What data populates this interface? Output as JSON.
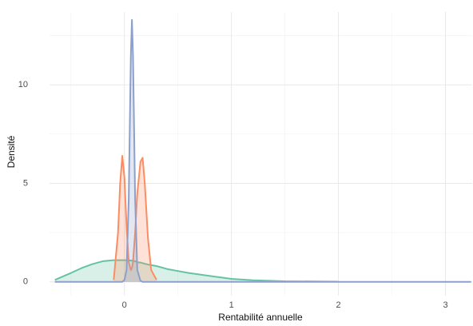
{
  "chart_data": {
    "type": "density",
    "x_label": "Rentabilité annuelle",
    "y_label": "Densité",
    "x": [
      -0.65,
      -0.5,
      -0.4,
      -0.3,
      -0.2,
      -0.1,
      -0.06,
      -0.04,
      -0.02,
      0,
      0.02,
      0.04,
      0.06,
      0.07,
      0.08,
      0.1,
      0.12,
      0.15,
      0.17,
      0.19,
      0.22,
      0.25,
      0.3,
      0.4,
      0.5,
      0.6,
      0.8,
      1.0,
      1.2,
      1.5,
      2.0,
      2.5,
      3.0,
      3.24
    ],
    "series": [
      {
        "color": "#66c2a5",
        "values": [
          0.1,
          0.45,
          0.7,
          0.9,
          1.05,
          1.1,
          1.1,
          1.1,
          1.1,
          1.1,
          1.1,
          1.1,
          1.08,
          1.08,
          1.07,
          1.05,
          1.0,
          0.98,
          0.95,
          0.92,
          0.88,
          0.85,
          0.8,
          0.65,
          0.55,
          0.45,
          0.3,
          0.15,
          0.08,
          0.03,
          0.01,
          null,
          null,
          null
        ]
      },
      {
        "color": "#fc8d62",
        "values": [
          null,
          null,
          null,
          null,
          null,
          0.1,
          2.5,
          5.0,
          6.4,
          5.3,
          2.8,
          1.0,
          0.6,
          0.7,
          1.0,
          2.5,
          4.5,
          6.1,
          6.3,
          5.0,
          2.2,
          0.6,
          0.1,
          null,
          null,
          null,
          null,
          null,
          null,
          null,
          null,
          null,
          null,
          null
        ]
      },
      {
        "color": "#8da0cb",
        "values": [
          0,
          0,
          0,
          0,
          0,
          0,
          0,
          0,
          0,
          0.1,
          0.6,
          4.2,
          11.5,
          13.3,
          11.5,
          4.2,
          0.6,
          0.05,
          0,
          0,
          0,
          0,
          0,
          0,
          0,
          0,
          0,
          0,
          0,
          0,
          0,
          0,
          0,
          0
        ]
      }
    ],
    "xlim": [
      -0.7,
      3.25
    ],
    "ylim": [
      -0.7,
      13.7
    ],
    "xticks": [
      0,
      1,
      2,
      3
    ],
    "yticks": [
      0,
      5,
      10
    ],
    "x_minor_grid": [
      -0.5,
      0.5,
      1.5,
      2.5
    ],
    "y_minor_grid": [
      2.5,
      7.5,
      12.5
    ],
    "grid": true,
    "fill_opacity": 0.25
  }
}
